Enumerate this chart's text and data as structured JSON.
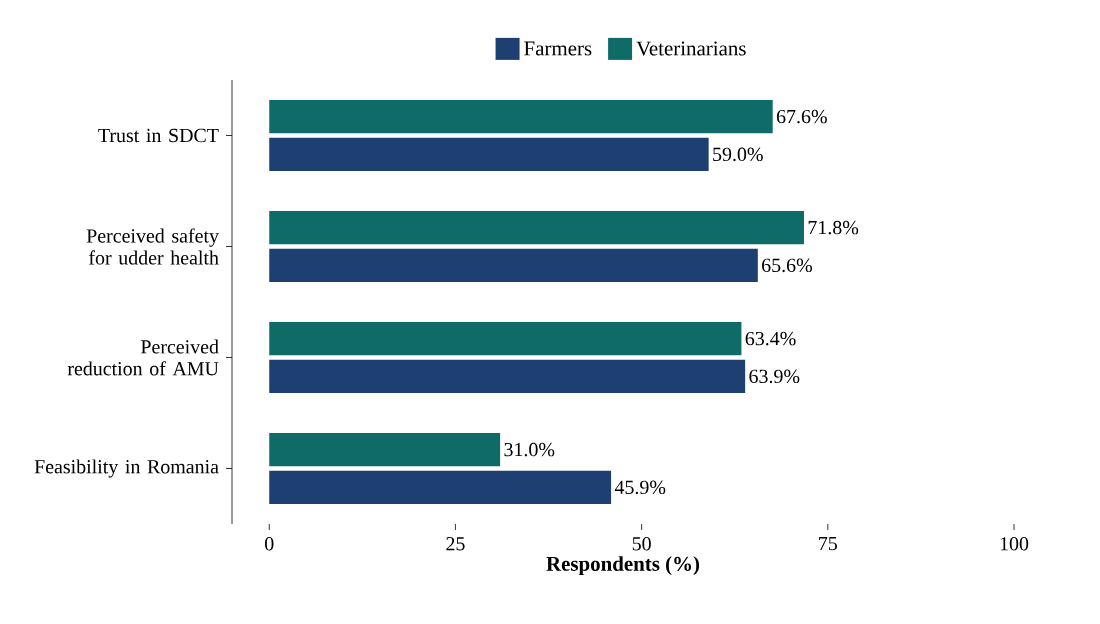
{
  "chart_data": {
    "type": "bar",
    "orientation": "horizontal",
    "xlabel": "**Respondents (%)**",
    "categories": [
      "Trust in SDCT",
      "Perceived safety for udder health",
      "Perceived reduction of AMU",
      "Feasibility in Romania"
    ],
    "series": [
      {
        "name": "Farmers",
        "color": "#1d3f72",
        "values": [
          59.0,
          65.6,
          63.9,
          45.9
        ],
        "value_labels": [
          "59.0%",
          "65.6%",
          "63.9%",
          "45.9%"
        ]
      },
      {
        "name": "Veterinarians",
        "color": "#0e6b68",
        "values": [
          67.6,
          71.8,
          63.4,
          31.0
        ],
        "value_labels": [
          "67.6%",
          "71.8%",
          "63.4%",
          "31.0%"
        ]
      }
    ],
    "xlim": [
      -5,
      100
    ],
    "xticks": [
      0,
      25,
      50,
      75,
      100
    ],
    "grid": false,
    "legend": "top"
  }
}
